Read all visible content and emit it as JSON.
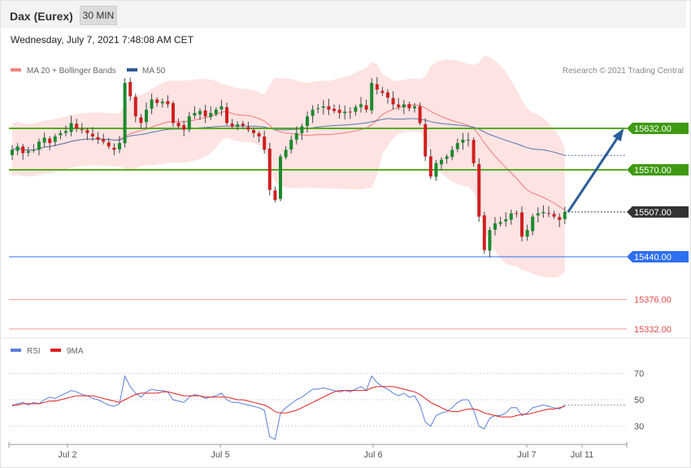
{
  "header": {
    "instrument": "Dax (Eurex)",
    "timeframe": "30 MIN",
    "datetime": "Wednesday, July 7, 2021 7:48:08 AM CET"
  },
  "legend": {
    "ma20_bb": "MA 20 + Bollinger Bands",
    "ma50": "MA 50",
    "credit": "Research © 2021 Trading Central"
  },
  "rsi_legend": {
    "rsi": "RSI",
    "ma9": "9MA"
  },
  "colors": {
    "bull": "#1d8a2e",
    "bear": "#d11f1f",
    "bb_fill": "#fddada",
    "ma20": "#ee7a7a",
    "ma50": "#5577a8",
    "resistance": "#5aaa1e",
    "pivot": "#333333",
    "support1": "#2f6fef",
    "support_red": "#e24a4a",
    "rsi": "#5b7fd8",
    "rsi_ma": "#e02020",
    "arrow": "#2a5d9c"
  },
  "chart_data": [
    {
      "type": "candlestick",
      "ylim": [
        15300,
        15760
      ],
      "x_labels": [
        "Jul 2",
        "Jul 5",
        "Jul 6",
        "Jul 7",
        "Jul 11"
      ],
      "close_series": [
        15600,
        15605,
        15595,
        15598,
        15600,
        15612,
        15618,
        15610,
        15620,
        15625,
        15628,
        15640,
        15632,
        15630,
        15625,
        15620,
        15615,
        15612,
        15605,
        15600,
        15610,
        15700,
        15680,
        15650,
        15640,
        15660,
        15675,
        15670,
        15672,
        15668,
        15640,
        15635,
        15630,
        15650,
        15655,
        15658,
        15650,
        15655,
        15660,
        15665,
        15640,
        15635,
        15638,
        15636,
        15630,
        15625,
        15620,
        15600,
        15540,
        15525,
        15590,
        15600,
        15615,
        15625,
        15635,
        15650,
        15660,
        15662,
        15665,
        15660,
        15658,
        15655,
        15657,
        15656,
        15664,
        15668,
        15660,
        15700,
        15690,
        15685,
        15678,
        15668,
        15664,
        15668,
        15662,
        15665,
        15640,
        15590,
        15560,
        15580,
        15585,
        15590,
        15600,
        15610,
        15615,
        15615,
        15580,
        15500,
        15450,
        15480,
        15490,
        15492,
        15496,
        15505,
        15505,
        15470,
        15480,
        15500,
        15505,
        15507,
        15505,
        15500,
        15495,
        15507
      ],
      "levels": [
        {
          "label": "15632.00",
          "value": 15632,
          "kind": "resistance"
        },
        {
          "label": "15570.00",
          "value": 15570,
          "kind": "resistance"
        },
        {
          "label": "15507.00",
          "value": 15507,
          "kind": "pivot"
        },
        {
          "label": "15440.00",
          "value": 15440,
          "kind": "support"
        },
        {
          "label": "15376.00",
          "value": 15376,
          "kind": "support_red"
        },
        {
          "label": "15332.00",
          "value": 15332,
          "kind": "support_red"
        }
      ],
      "arrow": {
        "from": 15507,
        "to": 15632
      }
    },
    {
      "type": "line",
      "series": [
        {
          "name": "RSI"
        },
        {
          "name": "9MA"
        }
      ],
      "ylim": [
        10,
        80
      ],
      "y_ticks": [
        "70",
        "50",
        "30"
      ],
      "rsi": [
        45,
        47,
        48,
        46,
        48,
        47,
        50,
        52,
        51,
        53,
        55,
        57,
        56,
        54,
        53,
        51,
        50,
        48,
        46,
        45,
        47,
        68,
        60,
        55,
        52,
        56,
        58,
        57,
        57,
        56,
        50,
        49,
        48,
        52,
        54,
        53,
        51,
        52,
        53,
        55,
        50,
        48,
        48,
        47,
        46,
        45,
        44,
        42,
        22,
        20,
        40,
        44,
        47,
        50,
        52,
        55,
        58,
        58,
        59,
        58,
        57,
        56,
        57,
        56,
        58,
        60,
        57,
        68,
        63,
        60,
        58,
        55,
        53,
        55,
        52,
        53,
        46,
        33,
        30,
        38,
        40,
        41,
        44,
        48,
        50,
        50,
        42,
        30,
        28,
        36,
        38,
        38,
        40,
        44,
        44,
        38,
        40,
        44,
        45,
        46,
        45,
        44,
        43,
        46
      ],
      "rsi_ma": [
        46,
        46,
        47,
        47,
        47,
        47,
        48,
        49,
        49,
        50,
        51,
        52,
        53,
        53,
        53,
        53,
        52,
        51,
        50,
        49,
        48,
        50,
        52,
        54,
        55,
        55,
        55,
        55,
        56,
        56,
        55,
        54,
        53,
        53,
        53,
        53,
        52,
        52,
        52,
        52,
        52,
        51,
        50,
        50,
        49,
        48,
        47,
        46,
        44,
        41,
        40,
        40,
        41,
        42,
        44,
        46,
        48,
        50,
        52,
        54,
        56,
        57,
        57,
        57,
        57,
        57,
        57,
        59,
        60,
        60,
        60,
        60,
        59,
        58,
        57,
        56,
        54,
        51,
        48,
        46,
        44,
        42,
        41,
        41,
        42,
        43,
        43,
        42,
        40,
        39,
        38,
        37,
        37,
        37,
        38,
        39,
        39,
        40,
        41,
        42,
        43,
        43,
        44,
        45
      ]
    }
  ]
}
